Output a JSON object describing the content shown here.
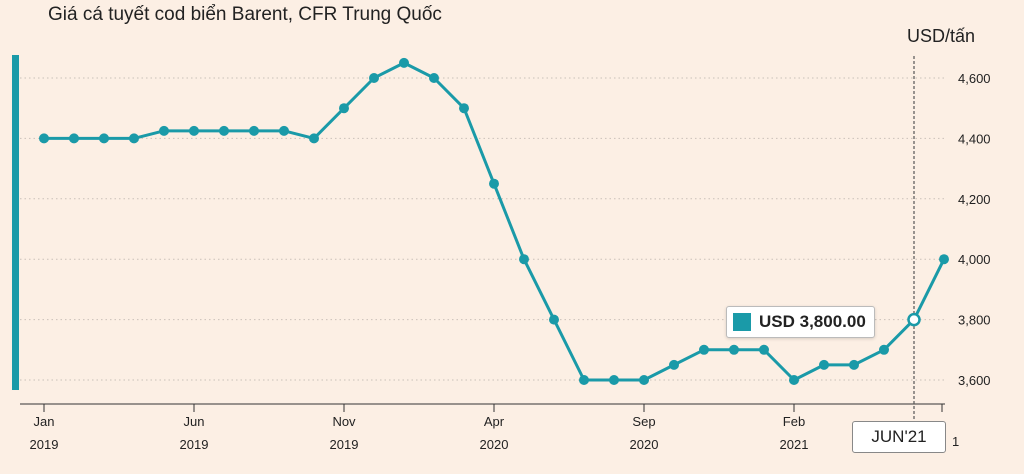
{
  "title": "Giá cá tuyết cod biển Barent, CFR Trung Quốc",
  "unit": "USD/tấn",
  "tooltip": {
    "label": "USD 3,800.00"
  },
  "cursor": {
    "label": "JUN'21",
    "trailing_label": "1"
  },
  "colors": {
    "background": "#fcefe4",
    "line": "#1a9aa8",
    "grid": "#c9c0b8"
  },
  "chart_data": {
    "type": "line",
    "title": "Giá cá tuyết cod biển Barent, CFR Trung Quốc",
    "ylabel": "USD/tấn",
    "ylim": [
      3550,
      4680
    ],
    "y_ticks": [
      3600,
      3800,
      4000,
      4200,
      4400,
      4600
    ],
    "y_tick_labels": [
      "3,600",
      "3,800",
      "4,000",
      "4,200",
      "4,400",
      "4,600"
    ],
    "x_ticks": [
      {
        "month": "Jan",
        "year": "2019",
        "index": 0
      },
      {
        "month": "Jun",
        "year": "2019",
        "index": 5
      },
      {
        "month": "Nov",
        "year": "2019",
        "index": 10
      },
      {
        "month": "Apr",
        "year": "2020",
        "index": 15
      },
      {
        "month": "Sep",
        "year": "2020",
        "index": 20
      },
      {
        "month": "Feb",
        "year": "2021",
        "index": 25
      }
    ],
    "x": [
      "2019-01",
      "2019-02",
      "2019-03",
      "2019-04",
      "2019-05",
      "2019-06",
      "2019-07",
      "2019-08",
      "2019-09",
      "2019-10",
      "2019-11",
      "2019-12",
      "2020-01",
      "2020-02",
      "2020-03",
      "2020-04",
      "2020-05",
      "2020-06",
      "2020-07",
      "2020-08",
      "2020-09",
      "2020-10",
      "2020-11",
      "2020-12",
      "2021-01",
      "2021-02",
      "2021-03",
      "2021-04",
      "2021-05",
      "2021-06",
      "2021-07"
    ],
    "series": [
      {
        "values": [
          4400,
          4400,
          4400,
          4400,
          4425,
          4425,
          4425,
          4425,
          4425,
          4400,
          4500,
          4600,
          4650,
          4600,
          4500,
          4250,
          4000,
          3800,
          3600,
          3600,
          3600,
          3650,
          3700,
          3700,
          3700,
          3600,
          3650,
          3650,
          3700,
          3800,
          4000
        ]
      }
    ],
    "highlight": {
      "x": "2021-06",
      "value": 3800
    },
    "grid": true
  }
}
